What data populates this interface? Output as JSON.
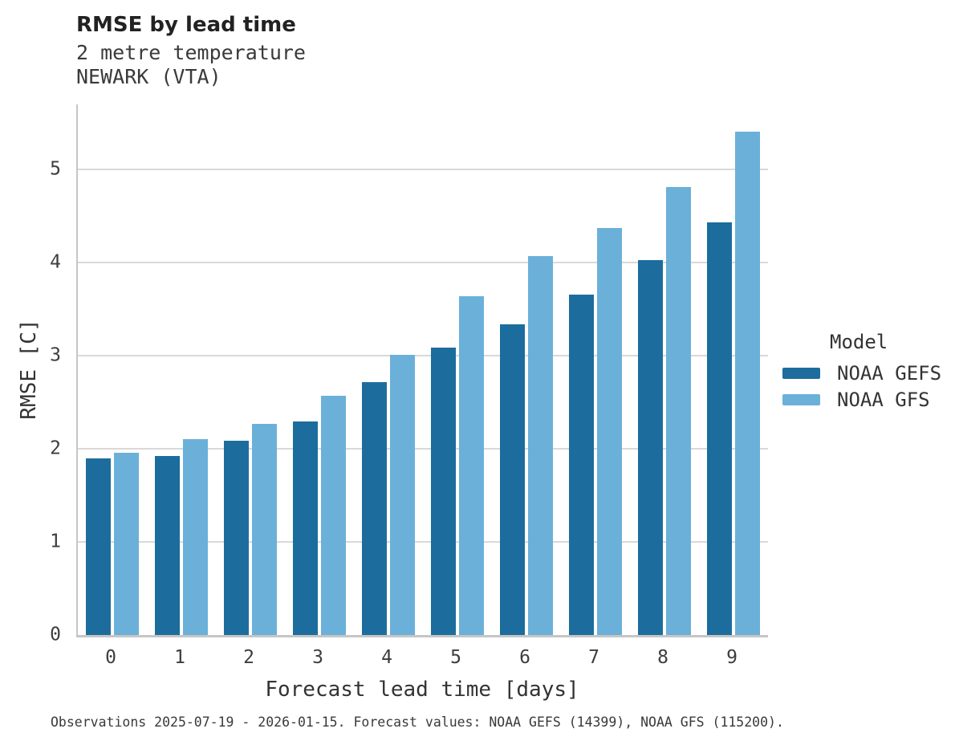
{
  "header": {
    "title": "RMSE by lead time",
    "subtitle1": "2 metre temperature",
    "subtitle2": "NEWARK (VTA)"
  },
  "chart_data": {
    "type": "bar",
    "title": "RMSE by lead time",
    "subtitle": "2 metre temperature NEWARK (VTA)",
    "categories": [
      "0",
      "1",
      "2",
      "3",
      "4",
      "5",
      "6",
      "7",
      "8",
      "9"
    ],
    "series": [
      {
        "name": "NOAA GEFS",
        "color": "#1c6d9d",
        "values": [
          1.9,
          1.92,
          2.09,
          2.29,
          2.72,
          3.09,
          3.34,
          3.66,
          4.03,
          4.43
        ]
      },
      {
        "name": "NOAA GFS",
        "color": "#6bb0d9",
        "values": [
          1.96,
          2.1,
          2.27,
          2.57,
          3.01,
          3.64,
          4.07,
          4.37,
          4.81,
          5.41
        ]
      }
    ],
    "xlabel": "Forecast lead time [days]",
    "ylabel": "RMSE [C]",
    "ylim": [
      0,
      5.7
    ],
    "yticks": [
      0,
      1,
      2,
      3,
      4,
      5
    ],
    "grid": true,
    "legend_title": "Model",
    "legend_position": "right",
    "colors": {
      "gridline": "#d9d9d9",
      "spine": "#c6c6c6",
      "text": "#333333"
    }
  },
  "footer": {
    "note": "Observations 2025-07-19 - 2026-01-15. Forecast values: NOAA GEFS (14399), NOAA GFS (115200)."
  }
}
